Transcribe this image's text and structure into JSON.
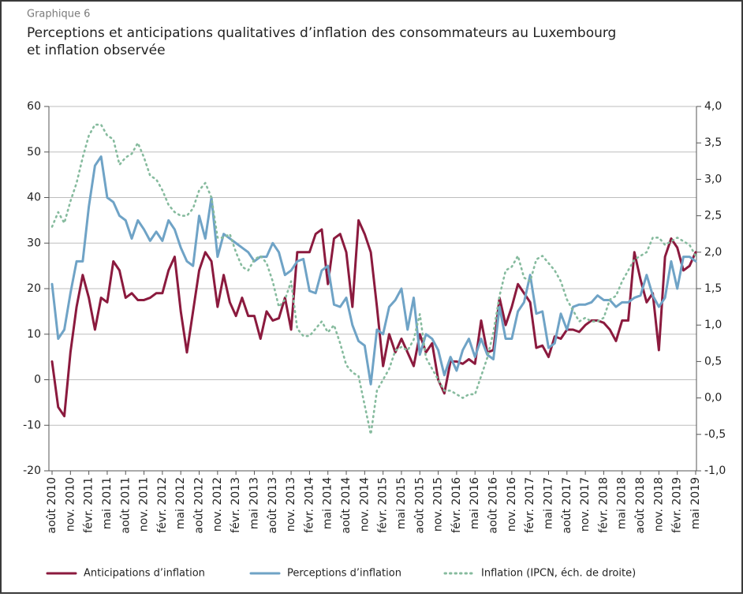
{
  "chart_data": {
    "type": "line",
    "supertitle": "Graphique 6",
    "title": [
      "Perceptions et anticipations qualitatives d’inflation des consommateurs au Luxembourg",
      "et inflation observée"
    ],
    "categories": [
      "août 2010",
      null,
      null,
      "nov. 2010",
      null,
      null,
      "févr. 2011",
      null,
      null,
      "mai 2011",
      null,
      null,
      "août 2011",
      null,
      null,
      "nov. 2011",
      null,
      null,
      "févr. 2012",
      null,
      null,
      "mai 2012",
      null,
      null,
      "août 2012",
      null,
      null,
      "nov. 2012",
      null,
      null,
      "févr. 2013",
      null,
      null,
      "mai 2013",
      null,
      null,
      "août 2013",
      null,
      null,
      "nov. 2013",
      null,
      null,
      "févr. 2014",
      null,
      null,
      "mai 2014",
      null,
      null,
      "août 2014",
      null,
      null,
      "nov. 2014",
      null,
      null,
      "févr. 2015",
      null,
      null,
      "mai 2015",
      null,
      null,
      "août 2015",
      null,
      null,
      "nov. 2015",
      null,
      null,
      "févr. 2016",
      null,
      null,
      "mai 2016",
      null,
      null,
      "août 2016",
      null,
      null,
      "nov. 2016",
      null,
      null,
      "févr. 2017",
      null,
      null,
      "mai 2017",
      null,
      null,
      "août 2017",
      null,
      null,
      "nov. 2017",
      null,
      null,
      "févr. 2018",
      null,
      null,
      "mai 2018",
      null,
      null,
      "août 2018",
      null,
      null,
      "nov. 2018",
      null,
      null,
      "févr. 2019",
      null,
      null,
      "mai 2019"
    ],
    "series": [
      {
        "name": "Anticipations d’inflation",
        "color": "#8b1a3e",
        "style": "solid",
        "values": [
          4,
          -6,
          -8,
          6,
          16,
          23,
          18,
          11,
          18,
          17,
          26,
          24,
          18,
          19,
          17.5,
          17.5,
          18,
          19,
          19,
          24,
          27,
          15,
          6,
          15,
          24,
          28,
          26,
          16,
          23,
          17,
          14,
          18,
          14,
          14,
          9,
          15,
          13,
          13.5,
          18,
          11,
          28,
          28,
          28,
          32,
          33,
          21,
          31,
          32,
          28,
          16,
          35,
          32,
          28,
          16,
          3,
          10,
          6,
          9,
          6,
          3,
          10,
          6,
          8,
          0,
          -3,
          4,
          4,
          3.5,
          4.5,
          3.5,
          13,
          6,
          6.5,
          18,
          12,
          16,
          21,
          19,
          17,
          7,
          7.5,
          5,
          9.5,
          9,
          11,
          11,
          10.5,
          12,
          13,
          13,
          12.5,
          11,
          8.5,
          13,
          13,
          28,
          22,
          17,
          19,
          6.5,
          27,
          31,
          29,
          24,
          25,
          28
        ]
      },
      {
        "name": "Perceptions d’inflation",
        "color": "#6fa3c6",
        "style": "solid",
        "values": [
          21,
          9,
          11,
          19,
          26,
          26,
          38,
          47,
          49,
          40,
          39,
          36,
          35,
          31,
          35,
          33,
          30.5,
          32.5,
          30.5,
          35,
          33,
          29,
          26,
          25,
          36,
          31,
          40,
          27,
          32,
          31,
          30,
          29,
          28,
          26,
          27,
          27,
          30,
          28,
          23,
          24,
          26,
          26.5,
          19.5,
          19,
          24,
          25,
          16.5,
          16,
          18,
          12,
          8.5,
          7.5,
          -1,
          11,
          10,
          16,
          17.5,
          20,
          11,
          18,
          5.5,
          10,
          9,
          6.5,
          1,
          5,
          2,
          6.5,
          9,
          5,
          9,
          5.5,
          4.5,
          16,
          9,
          9,
          15,
          17,
          23,
          14.5,
          15,
          7,
          8,
          14.5,
          11,
          16,
          16.5,
          16.5,
          17,
          18.5,
          17.5,
          17.5,
          16,
          17,
          17,
          18,
          18.5,
          23,
          18.5,
          16,
          18,
          26,
          20,
          27,
          27,
          26
        ]
      },
      {
        "name": "Inflation (IPCN, éch. de droite)",
        "color": "#86bb9e",
        "style": "dotted",
        "axis": "y2",
        "values": [
          2.35,
          2.55,
          2.4,
          2.7,
          2.95,
          3.3,
          3.6,
          3.75,
          3.75,
          3.6,
          3.55,
          3.2,
          3.3,
          3.35,
          3.5,
          3.3,
          3.05,
          3.0,
          2.85,
          2.65,
          2.55,
          2.5,
          2.5,
          2.6,
          2.85,
          2.95,
          2.75,
          2.2,
          2.2,
          2.25,
          2.0,
          1.8,
          1.75,
          1.9,
          1.95,
          1.85,
          1.6,
          1.25,
          1.35,
          1.6,
          0.95,
          0.85,
          0.85,
          0.95,
          1.05,
          0.9,
          1.0,
          0.75,
          0.45,
          0.35,
          0.3,
          -0.1,
          -0.5,
          0.1,
          0.25,
          0.4,
          0.65,
          0.7,
          0.65,
          0.8,
          1.15,
          0.55,
          0.4,
          0.25,
          0.1,
          0.1,
          0.05,
          0.0,
          0.05,
          0.05,
          0.3,
          0.55,
          0.9,
          1.4,
          1.75,
          1.8,
          1.95,
          1.65,
          1.6,
          1.9,
          1.95,
          1.85,
          1.75,
          1.6,
          1.35,
          1.2,
          1.05,
          1.1,
          1.05,
          1.05,
          1.1,
          1.35,
          1.4,
          1.6,
          1.75,
          1.9,
          1.95,
          2.0,
          2.2,
          2.2,
          2.1,
          2.15,
          2.2,
          2.15,
          2.1,
          1.95
        ]
      }
    ],
    "ylim": [
      -20,
      60
    ],
    "yticks": [
      60,
      50,
      40,
      30,
      20,
      10,
      0,
      -10,
      -20
    ],
    "y2lim": [
      -1,
      4
    ],
    "y2ticks": [
      {
        "value": 4,
        "label": "4,0"
      },
      {
        "value": 3.5,
        "label": "3,5"
      },
      {
        "value": 3,
        "label": "3,0"
      },
      {
        "value": 2.5,
        "label": "2,5"
      },
      {
        "value": 2,
        "label": "2,0"
      },
      {
        "value": 1.5,
        "label": "1,5"
      },
      {
        "value": 1,
        "label": "1,0"
      },
      {
        "value": 0.5,
        "label": "0,5"
      },
      {
        "value": 0,
        "label": "0,0"
      },
      {
        "value": -0.5,
        "label": "-0,5"
      },
      {
        "value": -1,
        "label": "-1,0"
      }
    ],
    "grid": true,
    "legend": "bottom"
  }
}
